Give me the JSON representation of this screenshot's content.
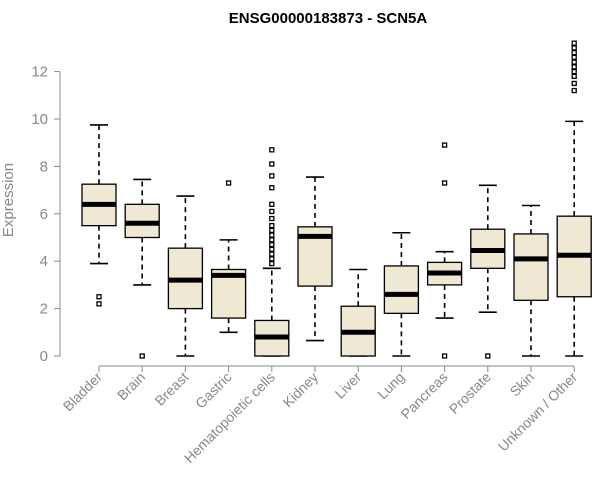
{
  "chart_data": {
    "type": "boxplot",
    "title": "ENSG00000183873 - SCN5A",
    "ylabel": "Expression",
    "xlabel": "",
    "ylim": [
      0,
      13.2
    ],
    "yticks": [
      0,
      2,
      4,
      6,
      8,
      10,
      12
    ],
    "box_color": "#efe8d2",
    "groups": [
      {
        "name": "Bladder",
        "min": 3.9,
        "q1": 5.5,
        "median": 6.4,
        "q3": 7.25,
        "max": 9.75,
        "outliers": [
          2.2,
          2.5
        ]
      },
      {
        "name": "Brain",
        "min": 3.0,
        "q1": 5.0,
        "median": 5.6,
        "q3": 6.4,
        "max": 7.45,
        "outliers": [
          0
        ]
      },
      {
        "name": "Breast",
        "min": 0,
        "q1": 2.0,
        "median": 3.2,
        "q3": 4.55,
        "max": 6.75,
        "outliers": []
      },
      {
        "name": "Gastric",
        "min": 1.0,
        "q1": 1.6,
        "median": 3.4,
        "q3": 3.65,
        "max": 4.9,
        "outliers": [
          7.3
        ]
      },
      {
        "name": "Hematopoietic cells",
        "min": 0,
        "q1": 0,
        "median": 0.8,
        "q3": 1.5,
        "max": 3.7,
        "outliers": [
          3.9,
          4.1,
          4.3,
          4.5,
          4.7,
          4.9,
          5.1,
          5.3,
          5.5,
          5.8,
          6.1,
          6.4,
          7.1,
          7.6,
          8.1,
          8.7
        ]
      },
      {
        "name": "Kidney",
        "min": 0.65,
        "q1": 2.95,
        "median": 5.05,
        "q3": 5.45,
        "max": 7.55,
        "outliers": []
      },
      {
        "name": "Liver",
        "min": 0,
        "q1": 0,
        "median": 1.0,
        "q3": 2.1,
        "max": 3.65,
        "outliers": []
      },
      {
        "name": "Lung",
        "min": 0,
        "q1": 1.8,
        "median": 2.6,
        "q3": 3.8,
        "max": 5.2,
        "outliers": []
      },
      {
        "name": "Pancreas",
        "min": 1.6,
        "q1": 3.0,
        "median": 3.5,
        "q3": 3.95,
        "max": 4.4,
        "outliers": [
          0,
          7.3,
          8.9
        ]
      },
      {
        "name": "Prostate",
        "min": 1.85,
        "q1": 3.7,
        "median": 4.45,
        "q3": 5.35,
        "max": 7.2,
        "outliers": [
          0
        ]
      },
      {
        "name": "Skin",
        "min": 0,
        "q1": 2.35,
        "median": 4.1,
        "q3": 5.15,
        "max": 6.35,
        "outliers": []
      },
      {
        "name": "Unknown / Other",
        "min": 0,
        "q1": 2.5,
        "median": 4.25,
        "q3": 5.9,
        "max": 9.9,
        "outliers": [
          11.2,
          11.5,
          11.8,
          12.0,
          12.2,
          12.4,
          12.6,
          12.8,
          13.0,
          13.2
        ]
      }
    ]
  }
}
